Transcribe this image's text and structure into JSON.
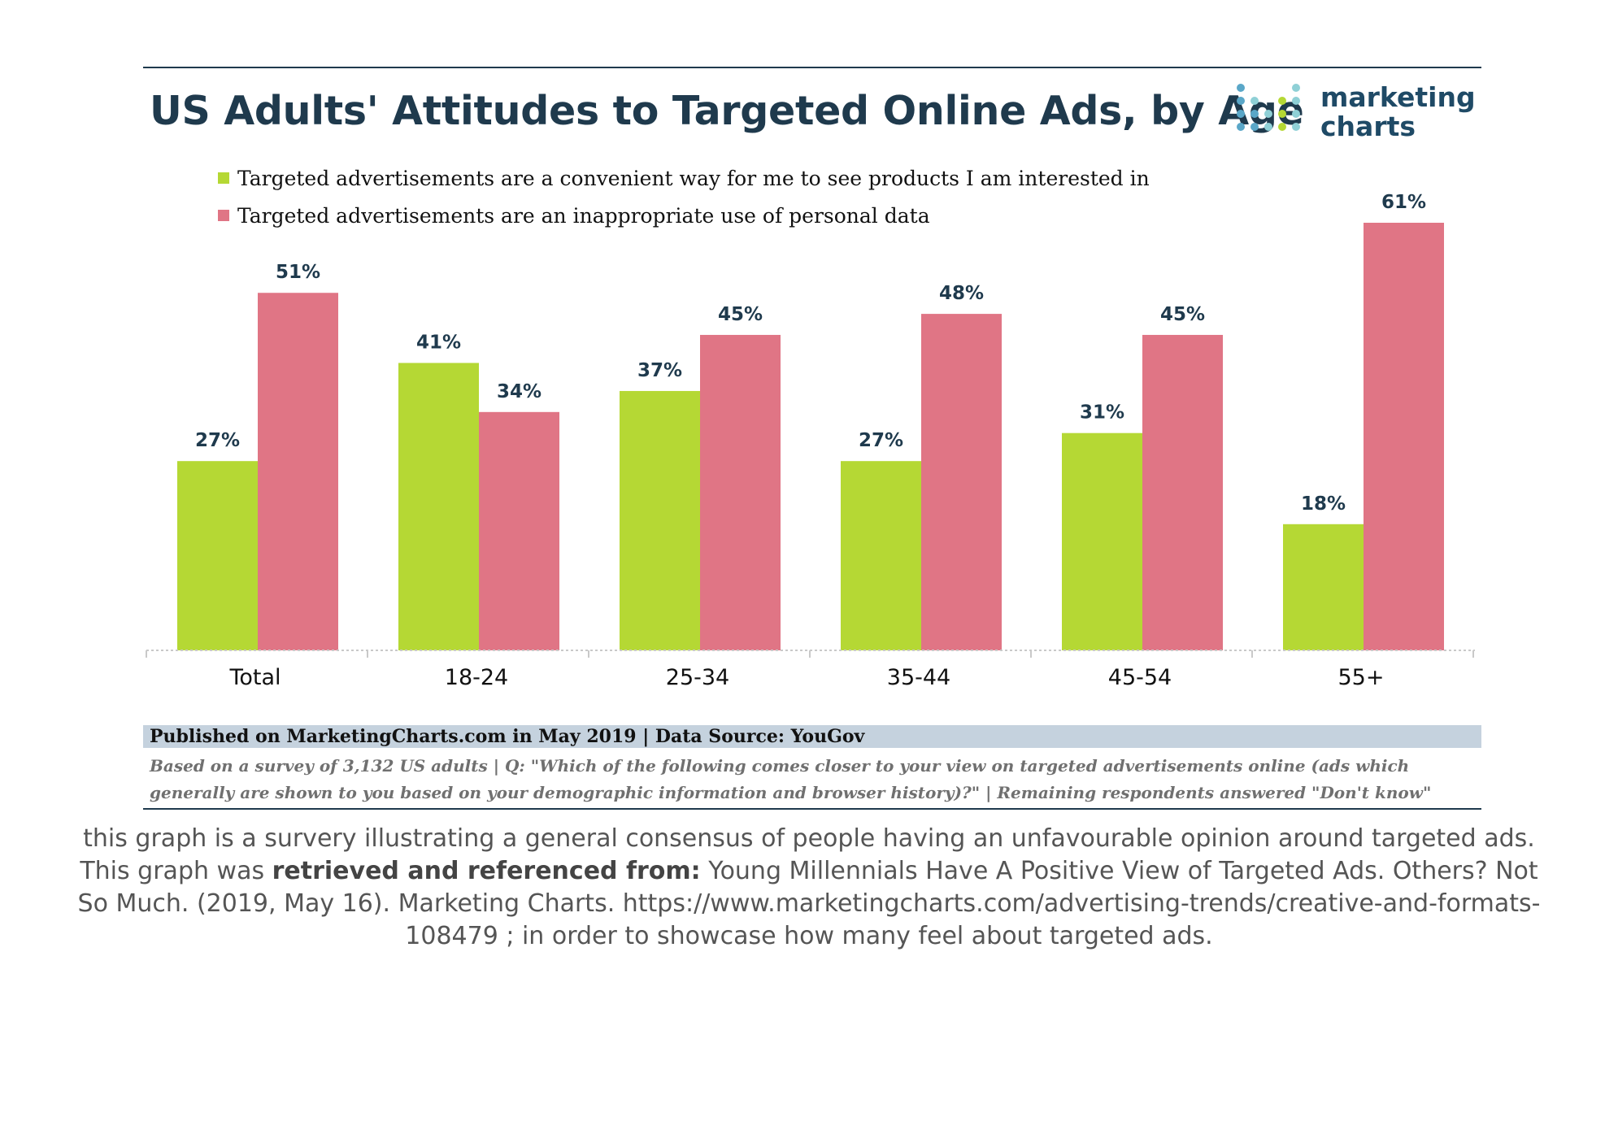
{
  "logo": {
    "line1": "marketing",
    "line2": "charts"
  },
  "footer": {
    "published": "Published on MarketingCharts.com in May 2019 | Data Source: YouGov",
    "note": "Based on a survey of 3,132 US adults | Q: \"Which of the following comes closer to your view on targeted advertisements online (ads which generally are shown to you based on your demographic information and browser history)?\" | Remaining respondents answered \"Don't know\""
  },
  "caption": {
    "part1": "this graph is a survery illustrating a general consensus of people having an unfavourable opinion around targeted ads. This graph was ",
    "bold": "retrieved and referenced from:",
    "part2": " Young Millennials Have A Positive View of Targeted Ads. Others? Not So Much. (2019, May 16). Marketing Charts. https://www.marketingcharts.com/advertising-trends/creative-and-formats-108479 ; in order to showcase how many feel about targeted ads."
  },
  "colors": {
    "green": "#b5d834",
    "pink": "#e07585",
    "navy": "#1f3a4d"
  },
  "chart_data": {
    "type": "bar",
    "title": "US Adults' Attitudes to Targeted Online Ads, by Age",
    "categories": [
      "Total",
      "18-24",
      "25-34",
      "35-44",
      "45-54",
      "55+"
    ],
    "series": [
      {
        "name": "Targeted advertisements are a convenient way for me to see products I am interested in",
        "values": [
          27,
          41,
          37,
          27,
          31,
          18
        ],
        "color": "#b5d834"
      },
      {
        "name": "Targeted advertisements are an inappropriate use of personal data",
        "values": [
          51,
          34,
          45,
          48,
          45,
          61
        ],
        "color": "#e07585"
      }
    ],
    "value_suffix": "%",
    "ylim": [
      0,
      61
    ],
    "grid": false,
    "legend": "top-left"
  }
}
